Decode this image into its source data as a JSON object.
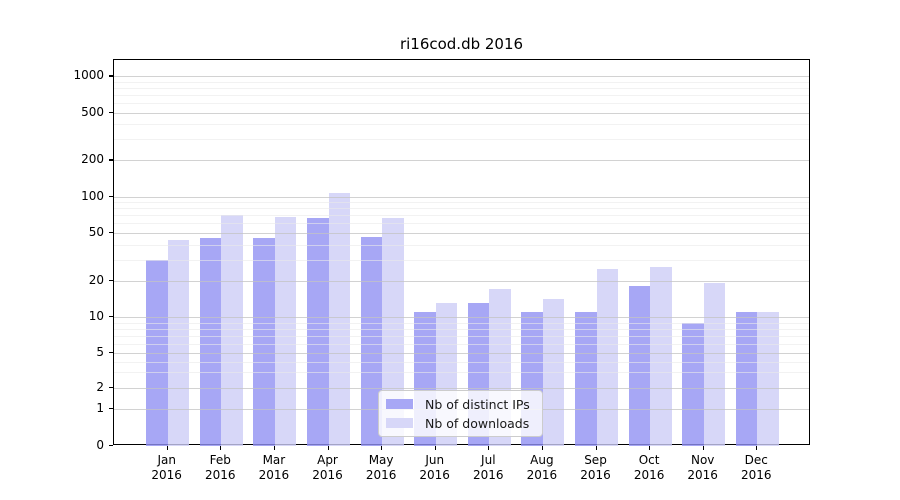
{
  "title": "ri16cod.db 2016",
  "colors": {
    "distinct_ips": "#a7a7f5",
    "downloads": "#d7d7f8",
    "distinct_ips_alpha": "rgba(145,145,243,0.8)",
    "downloads_alpha": "rgba(205,205,246,0.8)",
    "grid_major": "#c3c3c3",
    "grid_minor": "#e9e9e9",
    "frame": "#000000"
  },
  "legend": {
    "items": [
      {
        "label": "Nb of distinct IPs",
        "color_key": "distinct_ips"
      },
      {
        "label": "Nb of downloads",
        "color_key": "downloads"
      }
    ]
  },
  "y_axis": {
    "ticks": [
      {
        "label": "1000",
        "value": 1000
      },
      {
        "label": "500",
        "value": 500
      },
      {
        "label": "200",
        "value": 200
      },
      {
        "label": "100",
        "value": 100
      },
      {
        "label": "50",
        "value": 50
      },
      {
        "label": "20",
        "value": 20
      },
      {
        "label": "10",
        "value": 10
      },
      {
        "label": "5",
        "value": 5
      },
      {
        "label": "2",
        "value": 2
      },
      {
        "label": "1",
        "value": 1
      },
      {
        "label": "0",
        "value": 0
      }
    ],
    "minor_tick_values": [
      3,
      4,
      6,
      7,
      8,
      9,
      30,
      40,
      60,
      70,
      80,
      90,
      300,
      400,
      600,
      700,
      800,
      900
    ]
  },
  "x_axis": {
    "month_labels": [
      "Jan",
      "Feb",
      "Mar",
      "Apr",
      "May",
      "Jun",
      "Jul",
      "Aug",
      "Sep",
      "Oct",
      "Nov",
      "Dec"
    ],
    "year_label": "2016"
  },
  "chart_data": {
    "type": "bar",
    "title": "ri16cod.db 2016",
    "categories": [
      "Jan 2016",
      "Feb 2016",
      "Mar 2016",
      "Apr 2016",
      "May 2016",
      "Jun 2016",
      "Jul 2016",
      "Aug 2016",
      "Sep 2016",
      "Oct 2016",
      "Nov 2016",
      "Dec 2016"
    ],
    "series": [
      {
        "name": "Nb of distinct IPs",
        "values": [
          30,
          45,
          45,
          66,
          46,
          11,
          13,
          11,
          11,
          18,
          9,
          11
        ]
      },
      {
        "name": "Nb of downloads",
        "values": [
          44,
          70,
          68,
          107,
          66,
          13,
          17,
          14,
          25,
          26,
          19,
          11
        ]
      }
    ],
    "y_scale": "symlog",
    "y_ticks": [
      0,
      1,
      2,
      5,
      10,
      20,
      50,
      100,
      200,
      500,
      1000
    ],
    "ylim": [
      0,
      1000
    ],
    "grid": true,
    "legend_position": "lower center"
  }
}
